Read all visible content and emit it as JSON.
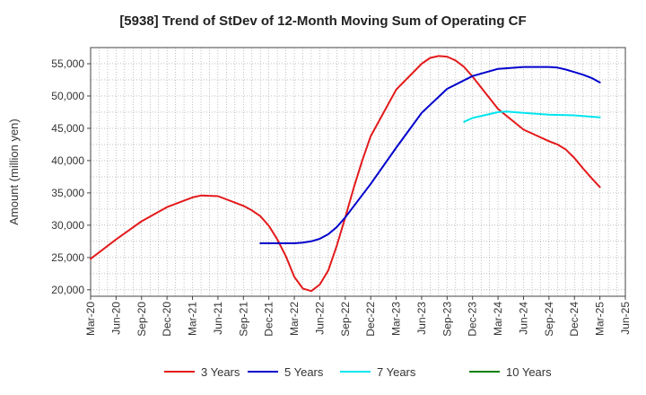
{
  "chart_data": {
    "type": "line",
    "title": "[5938]  Trend of StDev of 12-Month Moving Sum of Operating CF",
    "ylabel": "Amount (million yen)",
    "xlabel": "",
    "ylim": [
      19000,
      57500
    ],
    "y_ticks": [
      20000,
      25000,
      30000,
      35000,
      40000,
      45000,
      50000,
      55000
    ],
    "y_tick_labels": [
      "20,000",
      "25,000",
      "30,000",
      "35,000",
      "40,000",
      "45,000",
      "50,000",
      "55,000"
    ],
    "x_tick_labels": [
      "Mar-20",
      "Jun-20",
      "Sep-20",
      "Dec-20",
      "Mar-21",
      "Jun-21",
      "Sep-21",
      "Dec-21",
      "Mar-22",
      "Jun-22",
      "Sep-22",
      "Dec-22",
      "Mar-23",
      "Jun-23",
      "Sep-23",
      "Dec-23",
      "Mar-24",
      "Jun-24",
      "Sep-24",
      "Dec-24",
      "Mar-25",
      "Jun-25"
    ],
    "grid": true,
    "legend_position": "bottom",
    "series": [
      {
        "name": "3 Years",
        "color": "#e31a1c",
        "points": [
          [
            "Mar-20",
            24800
          ],
          [
            "Jun-20",
            27800
          ],
          [
            "Sep-20",
            30600
          ],
          [
            "Dec-20",
            32800
          ],
          [
            "Mar-21",
            34300
          ],
          [
            "Apr-21",
            34600
          ],
          [
            "Jun-21",
            34500
          ],
          [
            "Sep-21",
            33000
          ],
          [
            "Oct-21",
            32300
          ],
          [
            "Nov-21",
            31400
          ],
          [
            "Dec-21",
            29900
          ],
          [
            "Jan-22",
            27800
          ],
          [
            "Feb-22",
            25200
          ],
          [
            "Mar-22",
            22000
          ],
          [
            "Apr-22",
            20200
          ],
          [
            "May-22",
            19800
          ],
          [
            "Jun-22",
            20800
          ],
          [
            "Jul-22",
            23000
          ],
          [
            "Aug-22",
            26800
          ],
          [
            "Sep-22",
            31200
          ],
          [
            "Oct-22",
            35800
          ],
          [
            "Nov-22",
            40000
          ],
          [
            "Dec-22",
            43800
          ],
          [
            "Mar-23",
            51000
          ],
          [
            "Jun-23",
            55000
          ],
          [
            "Jul-23",
            55900
          ],
          [
            "Aug-23",
            56200
          ],
          [
            "Sep-23",
            56100
          ],
          [
            "Oct-23",
            55500
          ],
          [
            "Nov-23",
            54500
          ],
          [
            "Dec-23",
            53000
          ],
          [
            "Mar-24",
            48000
          ],
          [
            "Jun-24",
            44800
          ],
          [
            "Sep-24",
            43000
          ],
          [
            "Oct-24",
            42500
          ],
          [
            "Nov-24",
            41700
          ],
          [
            "Dec-24",
            40400
          ],
          [
            "Jan-25",
            38800
          ],
          [
            "Feb-25",
            37300
          ],
          [
            "Mar-25",
            35900
          ]
        ]
      },
      {
        "name": "5 Years",
        "color": "#0000cc",
        "points": [
          [
            "Nov-21",
            27200
          ],
          [
            "Dec-21",
            27200
          ],
          [
            "Mar-22",
            27200
          ],
          [
            "Apr-22",
            27300
          ],
          [
            "May-22",
            27500
          ],
          [
            "Jun-22",
            27900
          ],
          [
            "Jul-22",
            28600
          ],
          [
            "Aug-22",
            29700
          ],
          [
            "Sep-22",
            31200
          ],
          [
            "Dec-22",
            36400
          ],
          [
            "Mar-23",
            42000
          ],
          [
            "Jun-23",
            47400
          ],
          [
            "Sep-23",
            51100
          ],
          [
            "Dec-23",
            53100
          ],
          [
            "Mar-24",
            54200
          ],
          [
            "Jun-24",
            54500
          ],
          [
            "Sep-24",
            54500
          ],
          [
            "Oct-24",
            54400
          ],
          [
            "Nov-24",
            54100
          ],
          [
            "Dec-24",
            53700
          ],
          [
            "Jan-25",
            53300
          ],
          [
            "Feb-25",
            52800
          ],
          [
            "Mar-25",
            52100
          ]
        ]
      },
      {
        "name": "7 Years",
        "color": "#00e5ee",
        "points": [
          [
            "Nov-23",
            46000
          ],
          [
            "Dec-23",
            46600
          ],
          [
            "Mar-24",
            47500
          ],
          [
            "Apr-24",
            47600
          ],
          [
            "Jun-24",
            47400
          ],
          [
            "Sep-24",
            47100
          ],
          [
            "Dec-24",
            47000
          ],
          [
            "Mar-25",
            46700
          ]
        ]
      },
      {
        "name": "10 Years",
        "color": "#008000",
        "points": []
      }
    ]
  }
}
